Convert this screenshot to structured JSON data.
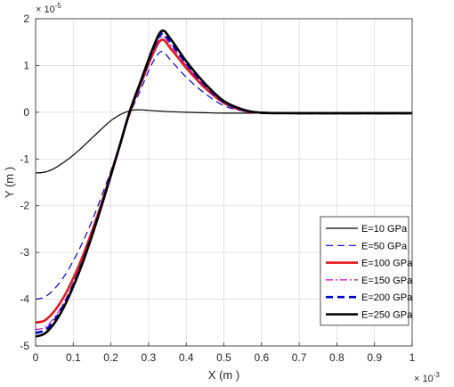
{
  "chart_data": {
    "type": "line",
    "title": "",
    "xlabel": "X (m )",
    "ylabel": "Y (m )",
    "x_exponent_label": "× 10",
    "x_exponent_power": "-3",
    "y_exponent_label": "× 10",
    "y_exponent_power": "-5",
    "xlim": [
      0,
      1
    ],
    "ylim": [
      -5,
      2
    ],
    "x_ticks": [
      0,
      0.1,
      0.2,
      0.3,
      0.4,
      0.5,
      0.6,
      0.7,
      0.8,
      0.9,
      1
    ],
    "x_tick_labels": [
      "0",
      "0.1",
      "0.2",
      "0.3",
      "0.4",
      "0.5",
      "0.6",
      "0.7",
      "0.8",
      "0.9",
      "1"
    ],
    "y_ticks": [
      -5,
      -4,
      -3,
      -2,
      -1,
      0,
      1,
      2
    ],
    "y_tick_labels": [
      "-5",
      "-4",
      "-3",
      "-2",
      "-1",
      "0",
      "1",
      "2"
    ],
    "grid": true,
    "legend_position": "bottom-right",
    "series": [
      {
        "name": "E=10 GPa",
        "color": "#000000",
        "dash": "solid",
        "width": 1.2,
        "x": [
          0,
          0.025,
          0.05,
          0.075,
          0.1,
          0.125,
          0.15,
          0.175,
          0.2,
          0.225,
          0.25,
          0.265,
          0.28,
          0.3,
          0.34,
          0.4,
          0.45,
          0.5,
          0.6,
          0.8,
          1.0
        ],
        "y": [
          -1.3,
          -1.28,
          -1.2,
          -1.07,
          -0.92,
          -0.74,
          -0.55,
          -0.36,
          -0.18,
          -0.05,
          0.03,
          0.05,
          0.05,
          0.04,
          0.02,
          0.0,
          -0.01,
          -0.02,
          -0.02,
          -0.02,
          -0.02
        ]
      },
      {
        "name": "E=50 GPa",
        "color": "#0000cc",
        "dash": "dashed",
        "width": 1.2,
        "x": [
          0,
          0.025,
          0.05,
          0.075,
          0.1,
          0.125,
          0.15,
          0.175,
          0.2,
          0.225,
          0.25,
          0.28,
          0.31,
          0.335,
          0.36,
          0.4,
          0.45,
          0.5,
          0.55,
          0.6,
          0.7,
          0.8,
          1.0
        ],
        "y": [
          -4.0,
          -3.95,
          -3.78,
          -3.52,
          -3.18,
          -2.78,
          -2.32,
          -1.8,
          -1.25,
          -0.66,
          -0.05,
          0.5,
          1.05,
          1.3,
          1.1,
          0.75,
          0.4,
          0.14,
          0.03,
          -0.01,
          -0.02,
          -0.02,
          -0.02
        ]
      },
      {
        "name": "E=100 GPa",
        "color": "#e31a1c",
        "dash": "solid",
        "width": 2.6,
        "x": [
          0,
          0.025,
          0.05,
          0.075,
          0.1,
          0.125,
          0.15,
          0.175,
          0.2,
          0.225,
          0.25,
          0.28,
          0.31,
          0.335,
          0.36,
          0.4,
          0.45,
          0.5,
          0.55,
          0.6,
          0.7,
          0.8,
          1.0
        ],
        "y": [
          -4.5,
          -4.45,
          -4.25,
          -3.95,
          -3.55,
          -3.08,
          -2.54,
          -1.95,
          -1.32,
          -0.67,
          0.0,
          0.62,
          1.22,
          1.55,
          1.35,
          0.95,
          0.52,
          0.2,
          0.04,
          -0.01,
          -0.02,
          -0.02,
          -0.02
        ]
      },
      {
        "name": "E=150 GPa",
        "color": "#cc00cc",
        "dash": "dashdot",
        "width": 1.2,
        "x": [
          0,
          0.025,
          0.05,
          0.075,
          0.1,
          0.125,
          0.15,
          0.175,
          0.2,
          0.225,
          0.25,
          0.28,
          0.31,
          0.335,
          0.36,
          0.4,
          0.45,
          0.5,
          0.55,
          0.6,
          0.7,
          0.8,
          1.0
        ],
        "y": [
          -4.65,
          -4.6,
          -4.39,
          -4.07,
          -3.65,
          -3.16,
          -2.6,
          -1.99,
          -1.34,
          -0.67,
          0.01,
          0.64,
          1.27,
          1.62,
          1.42,
          1.0,
          0.55,
          0.21,
          0.05,
          -0.01,
          -0.02,
          -0.02,
          -0.02
        ]
      },
      {
        "name": "E=200 GPa",
        "color": "#0000cc",
        "dash": "dashed",
        "width": 2.6,
        "x": [
          0,
          0.025,
          0.05,
          0.075,
          0.1,
          0.125,
          0.15,
          0.175,
          0.2,
          0.225,
          0.25,
          0.28,
          0.31,
          0.335,
          0.36,
          0.4,
          0.45,
          0.5,
          0.55,
          0.6,
          0.7,
          0.8,
          1.0
        ],
        "y": [
          -4.72,
          -4.66,
          -4.45,
          -4.12,
          -3.69,
          -3.19,
          -2.62,
          -2.0,
          -1.34,
          -0.67,
          0.01,
          0.66,
          1.3,
          1.68,
          1.48,
          1.04,
          0.58,
          0.22,
          0.05,
          -0.01,
          -0.02,
          -0.02,
          -0.02
        ]
      },
      {
        "name": "E=250 GPa",
        "color": "#000000",
        "dash": "solid",
        "width": 2.6,
        "x": [
          0,
          0.025,
          0.05,
          0.075,
          0.1,
          0.125,
          0.15,
          0.175,
          0.2,
          0.225,
          0.25,
          0.28,
          0.31,
          0.335,
          0.36,
          0.4,
          0.45,
          0.5,
          0.55,
          0.6,
          0.7,
          0.8,
          1.0
        ],
        "y": [
          -4.8,
          -4.73,
          -4.51,
          -4.17,
          -3.73,
          -3.22,
          -2.64,
          -2.01,
          -1.35,
          -0.67,
          0.02,
          0.68,
          1.34,
          1.74,
          1.55,
          1.09,
          0.61,
          0.24,
          0.06,
          -0.01,
          -0.02,
          -0.02,
          -0.02
        ]
      }
    ]
  }
}
